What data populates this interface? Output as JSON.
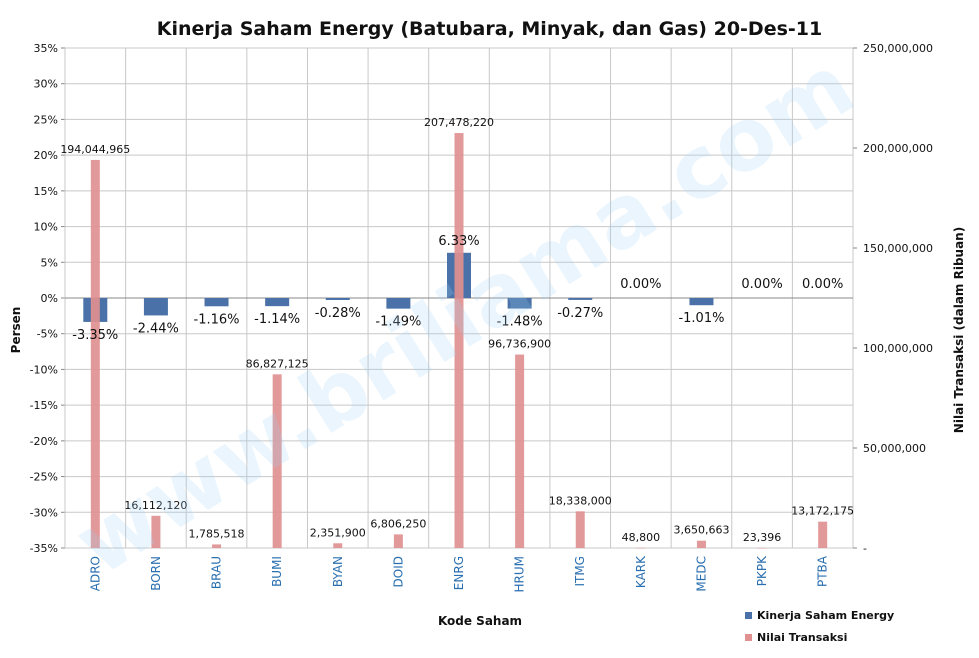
{
  "chart_data": {
    "type": "bar",
    "title": "Kinerja  Saham Energy (Batubara, Minyak, dan Gas) 20-Des-11",
    "xlabel": "Kode Saham",
    "ylabel": "Persen",
    "y2label": "Nilai Transaksi (dalam Ribuan)",
    "categories": [
      "ADRO",
      "BORN",
      "BRAU",
      "BUMI",
      "BYAN",
      "DOID",
      "ENRG",
      "HRUM",
      "ITMG",
      "KARK",
      "MEDC",
      "PKPK",
      "PTBA"
    ],
    "ylim": [
      -35,
      35
    ],
    "yticks": [
      "35%",
      "30%",
      "25%",
      "20%",
      "15%",
      "10%",
      "5%",
      "0%",
      "-5%",
      "-10%",
      "-15%",
      "-20%",
      "-25%",
      "-30%",
      "-35%"
    ],
    "y2lim": [
      0,
      250000000
    ],
    "y2ticks": [
      "250,000,000",
      "200,000,000",
      "150,000,000",
      "100,000,000",
      "50,000,000",
      "-"
    ],
    "legend_position": "bottom-right",
    "grid": true,
    "series": [
      {
        "name": "Kinerja Saham  Energy",
        "axis": "left",
        "color": "#4a72a8",
        "values": [
          -3.35,
          -2.44,
          -1.16,
          -1.14,
          -0.28,
          -1.49,
          6.33,
          -1.48,
          -0.27,
          0.0,
          -1.01,
          0.0,
          0.0
        ],
        "labels": [
          "-3.35%",
          "-2.44%",
          "-1.16%",
          "-1.14%",
          "-0.28%",
          "-1.49%",
          "6.33%",
          "-1.48%",
          "-0.27%",
          "0.00%",
          "-1.01%",
          "0.00%",
          "0.00%"
        ]
      },
      {
        "name": "Nilai Transaksi",
        "axis": "right",
        "color": "#e09090",
        "values": [
          194044965,
          16112120,
          1785518,
          86827125,
          2351900,
          6806250,
          207478220,
          96736900,
          18338000,
          48800,
          3650663,
          23396,
          13172175
        ],
        "labels": [
          "194,044,965",
          "16,112,120",
          "1,785,518",
          "86,827,125",
          "2,351,900",
          "6,806,250",
          "207,478,220",
          "96,736,900",
          "18,338,000",
          "48,800",
          "3,650,663",
          "23,396",
          "13,172,175"
        ]
      }
    ],
    "watermark": "www.briliama.com"
  }
}
